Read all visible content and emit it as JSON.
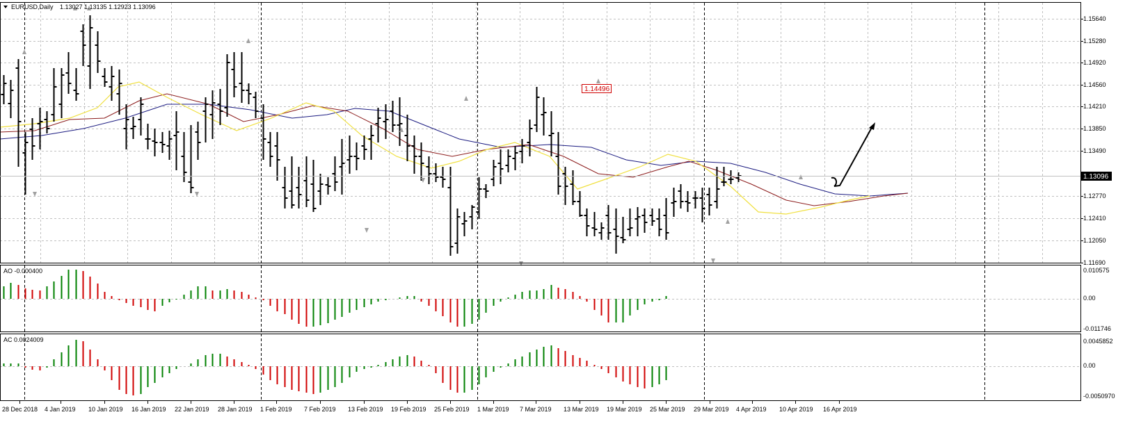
{
  "header": {
    "symbol_text": "EURUSD,Daily",
    "ohlc_text": "1.13027 1.13135 1.12923 1.13096"
  },
  "current_price": {
    "label": "1.13096",
    "value": 1.13096
  },
  "peak_label": {
    "text": "1.14496",
    "value": 1.14496
  },
  "colors": {
    "background": "#ffffff",
    "grid": "#c0c0c0",
    "frame": "#000000",
    "bars": "#000000",
    "jaw": "#1a1a80",
    "teeth": "#8b1a1a",
    "lips": "#f0e040",
    "ao_up": "#008000",
    "ao_down": "#d00000",
    "price_tag_bg": "#000000",
    "price_tag_text": "#ffffff",
    "peak_label_border": "#d00000"
  },
  "panels": {
    "ao": {
      "title": "AO -0.000400",
      "ticks": [
        "0.010575",
        "0.00",
        "-0.011746"
      ]
    },
    "ac": {
      "title": "AC 0.0024009",
      "ticks": [
        "0.0045852",
        "0.00",
        "-0.0050970"
      ]
    }
  },
  "chart_data": {
    "type": "ohlc",
    "instrument": "EURUSD",
    "timeframe": "Daily",
    "price_axis_ticks": [
      "1.15640",
      "1.15280",
      "1.14920",
      "1.14560",
      "1.14210",
      "1.13850",
      "1.13490",
      "1.13096",
      "1.12770",
      "1.12410",
      "1.12050",
      "1.11690"
    ],
    "date_labels": [
      "28 Dec 2018",
      "4 Jan 2019",
      "10 Jan 2019",
      "16 Jan 2019",
      "22 Jan 2019",
      "28 Jan 2019",
      "1 Feb 2019",
      "7 Feb 2019",
      "13 Feb 2019",
      "19 Feb 2019",
      "25 Feb 2019",
      "1 Mar 2019",
      "7 Mar 2019",
      "13 Mar 2019",
      "19 Mar 2019",
      "25 Mar 2019",
      "29 Mar 2019",
      "4 Apr 2019",
      "10 Apr 2019",
      "16 Apr 2019"
    ],
    "indicators": [
      "Alligator (jaw, teeth, lips)",
      "Awesome Oscillator",
      "Accelerator Oscillator"
    ],
    "last_close": 1.13096,
    "annotations": [
      "1.14496"
    ]
  }
}
